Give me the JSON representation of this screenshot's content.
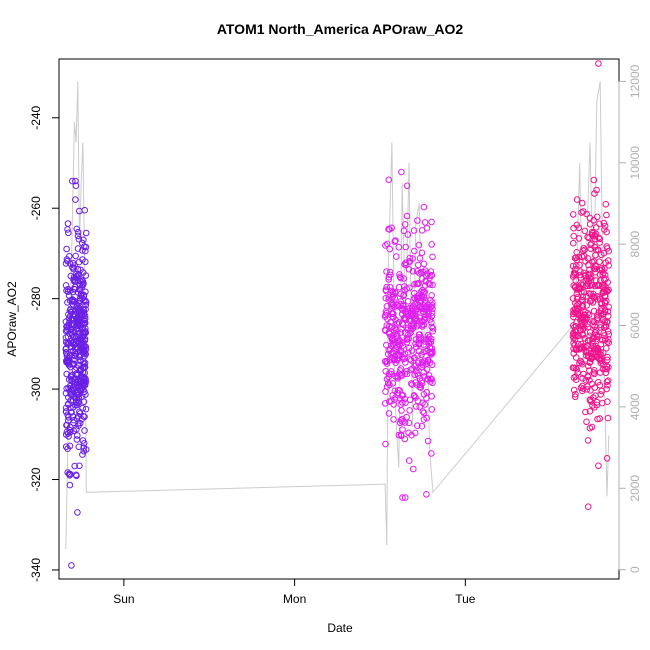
{
  "chart_data": {
    "type": "scatter",
    "title": "ATOM1 North_America APOraw_AO2",
    "xlabel": "Date",
    "ylabel": "APOraw_AO2",
    "x_ticks": [
      "Sun",
      "Mon",
      "Tue"
    ],
    "y_ticks": [
      -340,
      -320,
      -300,
      -280,
      -260,
      -240
    ],
    "y2_ticks": [
      0,
      2000,
      4000,
      6000,
      8000,
      10000,
      12000
    ],
    "xlim_days": [
      -0.38,
      2.9
    ],
    "ylim": [
      -342,
      -227
    ],
    "y2lim": [
      -230,
      12550
    ],
    "clusters": [
      {
        "x_start": -0.34,
        "x_end": -0.22,
        "y_mean": -290,
        "y_spread": 12,
        "y_min": -339,
        "y_max": -254,
        "n": 430,
        "color": "#6a1fe6"
      },
      {
        "x_start": 1.53,
        "x_end": 1.81,
        "y_mean": -287,
        "y_spread": 11,
        "y_min": -324,
        "y_max": -252,
        "n": 480,
        "color": "#e01ef0"
      },
      {
        "x_start": 2.63,
        "x_end": 2.84,
        "y_mean": -283,
        "y_spread": 12,
        "y_min": -326,
        "y_max": -228,
        "n": 430,
        "color": "#f0148c"
      }
    ],
    "secondary_series_line": {
      "color": "#cccccc",
      "x": [
        -0.34,
        -0.31,
        -0.29,
        -0.28,
        -0.27,
        -0.26,
        -0.25,
        -0.24,
        -0.23,
        -0.22,
        1.53,
        1.54,
        1.55,
        1.57,
        1.59,
        1.61,
        1.63,
        1.65,
        1.67,
        1.69,
        1.71,
        1.73,
        1.75,
        1.77,
        1.79,
        1.81,
        2.63,
        2.65,
        2.67,
        2.69,
        2.71,
        2.73,
        2.75,
        2.77,
        2.79,
        2.81,
        2.83,
        2.84
      ],
      "y": [
        500,
        7000,
        11000,
        10500,
        12000,
        8000,
        9500,
        10500,
        7500,
        1900,
        2100,
        600,
        7500,
        10500,
        4000,
        2500,
        9500,
        6000,
        10000,
        3500,
        8500,
        9000,
        5000,
        7000,
        3000,
        1900,
        6000,
        7000,
        10000,
        5000,
        8000,
        10500,
        6500,
        11500,
        12000,
        5500,
        1800,
        3300
      ]
    }
  }
}
